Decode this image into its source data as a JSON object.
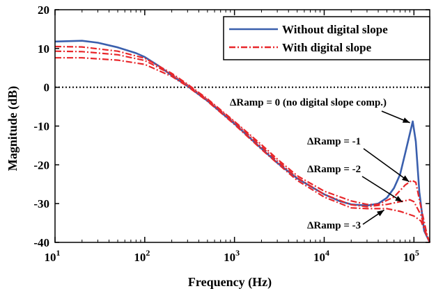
{
  "chart_data": {
    "type": "line",
    "title": "",
    "xlabel": "Frequency (Hz)",
    "ylabel": "Magnitude (dB)",
    "xscale": "log",
    "xlim": [
      10,
      150000
    ],
    "ylim": [
      -40,
      20
    ],
    "grid": false,
    "zero_reference_line": {
      "y": 0,
      "style": "dotted",
      "color": "#000000"
    },
    "x_ticks": [
      {
        "value": 10,
        "base": "10",
        "exp": "1"
      },
      {
        "value": 100,
        "base": "10",
        "exp": "2"
      },
      {
        "value": 1000,
        "base": "10",
        "exp": "3"
      },
      {
        "value": 10000,
        "base": "10",
        "exp": "4"
      },
      {
        "value": 100000,
        "base": "10",
        "exp": "5"
      }
    ],
    "y_ticks": [
      "20",
      "10",
      "0",
      "-10",
      "-20",
      "-30",
      "-40"
    ],
    "y_tick_values": [
      20,
      10,
      0,
      -10,
      -20,
      -30,
      -40
    ],
    "legend": {
      "placement": "top-right",
      "entries": [
        {
          "label": "Without digital slope",
          "color": "#3a5fad",
          "style": "solid"
        },
        {
          "label": "With digital slope",
          "color": "#e8262a",
          "style": "dashdot"
        }
      ]
    },
    "series": [
      {
        "name": "Without digital slope",
        "color": "#3a5fad",
        "style": "solid",
        "points": [
          [
            10,
            11.8
          ],
          [
            20,
            12
          ],
          [
            30,
            11.5
          ],
          [
            50,
            10.3
          ],
          [
            80,
            8.8
          ],
          [
            100,
            7.8
          ],
          [
            150,
            5.2
          ],
          [
            200,
            3
          ],
          [
            300,
            0.3
          ],
          [
            500,
            -3.5
          ],
          [
            1000,
            -9.4
          ],
          [
            2000,
            -15.8
          ],
          [
            3000,
            -19.5
          ],
          [
            5000,
            -23.5
          ],
          [
            8000,
            -26.3
          ],
          [
            10000,
            -27.6
          ],
          [
            15000,
            -29.4
          ],
          [
            20000,
            -30.2
          ],
          [
            30000,
            -30.5
          ],
          [
            40000,
            -30
          ],
          [
            50000,
            -28.5
          ],
          [
            60000,
            -26
          ],
          [
            70000,
            -22.5
          ],
          [
            80000,
            -17
          ],
          [
            90000,
            -12
          ],
          [
            97000,
            -8.8
          ],
          [
            105000,
            -14
          ],
          [
            115000,
            -27
          ],
          [
            130000,
            -37
          ],
          [
            150000,
            -40
          ]
        ]
      },
      {
        "name": "ΔRamp = -1",
        "color": "#e8262a",
        "style": "dashdot",
        "points": [
          [
            10,
            10.5
          ],
          [
            20,
            10.4
          ],
          [
            50,
            9.3
          ],
          [
            100,
            7.5
          ],
          [
            200,
            3.6
          ],
          [
            300,
            0.8
          ],
          [
            500,
            -3
          ],
          [
            1000,
            -8.8
          ],
          [
            2000,
            -14.8
          ],
          [
            3000,
            -18.5
          ],
          [
            5000,
            -22.8
          ],
          [
            10000,
            -26.8
          ],
          [
            20000,
            -29.3
          ],
          [
            30000,
            -30.2
          ],
          [
            40000,
            -30.2
          ],
          [
            60000,
            -28.3
          ],
          [
            80000,
            -25.2
          ],
          [
            95000,
            -24
          ],
          [
            105000,
            -24.5
          ],
          [
            120000,
            -31
          ],
          [
            140000,
            -38
          ],
          [
            150000,
            -40
          ]
        ]
      },
      {
        "name": "ΔRamp = -2",
        "color": "#e8262a",
        "style": "dashdot",
        "points": [
          [
            10,
            9.3
          ],
          [
            20,
            9.2
          ],
          [
            50,
            8.4
          ],
          [
            100,
            6.9
          ],
          [
            200,
            3.3
          ],
          [
            300,
            0.6
          ],
          [
            500,
            -3.2
          ],
          [
            1000,
            -9
          ],
          [
            2000,
            -15.3
          ],
          [
            3000,
            -19
          ],
          [
            5000,
            -23.3
          ],
          [
            10000,
            -27.6
          ],
          [
            20000,
            -30.3
          ],
          [
            30000,
            -30.8
          ],
          [
            50000,
            -30.2
          ],
          [
            70000,
            -29.5
          ],
          [
            90000,
            -29
          ],
          [
            100000,
            -29.5
          ],
          [
            120000,
            -33
          ],
          [
            140000,
            -38.5
          ],
          [
            150000,
            -40
          ]
        ]
      },
      {
        "name": "ΔRamp = -3",
        "color": "#e8262a",
        "style": "dashdot",
        "points": [
          [
            10,
            7.6
          ],
          [
            20,
            7.6
          ],
          [
            50,
            7
          ],
          [
            100,
            5.9
          ],
          [
            200,
            2.8
          ],
          [
            300,
            0.2
          ],
          [
            500,
            -3.6
          ],
          [
            1000,
            -9.6
          ],
          [
            2000,
            -16
          ],
          [
            3000,
            -19.6
          ],
          [
            5000,
            -24
          ],
          [
            10000,
            -28.3
          ],
          [
            20000,
            -31.1
          ],
          [
            30000,
            -31.3
          ],
          [
            50000,
            -31.3
          ],
          [
            70000,
            -32
          ],
          [
            100000,
            -33.2
          ],
          [
            120000,
            -34.5
          ],
          [
            140000,
            -38.5
          ],
          [
            150000,
            -40
          ]
        ]
      }
    ],
    "annotations": [
      {
        "text": "ΔRamp =  0 (no digital slope comp.)",
        "target": [
          97000,
          -8.8
        ]
      },
      {
        "text": "ΔRamp = -1",
        "target": [
          95000,
          -24
        ]
      },
      {
        "text": "ΔRamp = -2",
        "target": [
          80000,
          -29.2
        ]
      },
      {
        "text": "ΔRamp = -3",
        "target": [
          50000,
          -31.3
        ]
      }
    ]
  }
}
